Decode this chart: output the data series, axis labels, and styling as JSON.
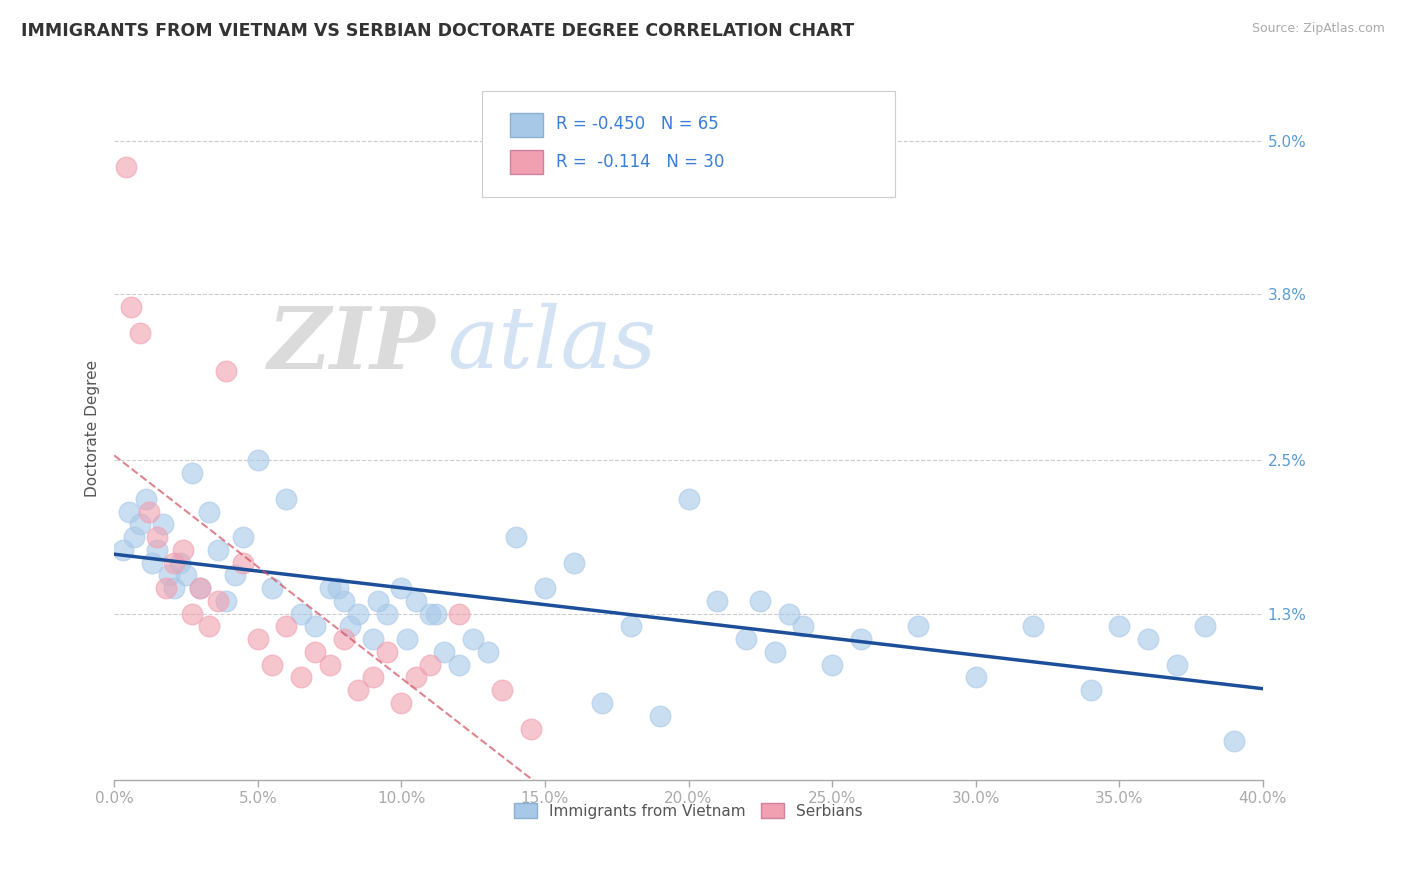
{
  "title": "IMMIGRANTS FROM VIETNAM VS SERBIAN DOCTORATE DEGREE CORRELATION CHART",
  "source": "Source: ZipAtlas.com",
  "ylabel": "Doctorate Degree",
  "xlim": [
    0.0,
    40.0
  ],
  "ylim": [
    0.0,
    5.5
  ],
  "ytick_vals": [
    1.3,
    2.5,
    3.8,
    5.0
  ],
  "ytick_labels": [
    "1.3%",
    "2.5%",
    "3.8%",
    "5.0%"
  ],
  "xtick_vals": [
    0,
    5,
    10,
    15,
    20,
    25,
    30,
    35,
    40
  ],
  "xtick_labels": [
    "0.0%",
    "5.0%",
    "10.0%",
    "15.0%",
    "20.0%",
    "25.0%",
    "30.0%",
    "35.0%",
    "40.0%"
  ],
  "legend1_label": "Immigrants from Vietnam",
  "legend2_label": "Serbians",
  "r1": "-0.450",
  "n1": "65",
  "r2": "-0.114",
  "n2": "30",
  "blue_color": "#A8C8E8",
  "pink_color": "#F0A0B0",
  "blue_line_color": "#1C4E9A",
  "pink_line_color": "#D05060",
  "background_color": "#FFFFFF",
  "grid_color": "#CCCCCC",
  "title_color": "#333333",
  "axis_label_color": "#5B9BD5",
  "watermark_zip": "ZIP",
  "watermark_atlas": "atlas",
  "vietnam_x": [
    0.3,
    0.5,
    0.7,
    0.9,
    1.1,
    1.3,
    1.5,
    1.7,
    1.9,
    2.1,
    2.3,
    2.5,
    2.7,
    3.0,
    3.3,
    3.6,
    3.9,
    4.2,
    4.5,
    5.0,
    5.5,
    6.0,
    6.5,
    7.0,
    7.5,
    8.0,
    8.5,
    9.0,
    9.5,
    10.0,
    10.5,
    11.0,
    11.5,
    12.0,
    12.5,
    13.0,
    14.0,
    15.0,
    16.0,
    17.0,
    18.0,
    19.0,
    20.0,
    21.0,
    22.0,
    23.0,
    24.0,
    25.0,
    26.0,
    28.0,
    30.0,
    32.0,
    34.0,
    35.0,
    36.0,
    37.0,
    38.0,
    39.0,
    22.5,
    23.5,
    7.8,
    8.2,
    9.2,
    10.2,
    11.2
  ],
  "vietnam_y": [
    1.8,
    2.1,
    1.9,
    2.0,
    2.2,
    1.7,
    1.8,
    2.0,
    1.6,
    1.5,
    1.7,
    1.6,
    2.4,
    1.5,
    2.1,
    1.8,
    1.4,
    1.6,
    1.9,
    2.5,
    1.5,
    2.2,
    1.3,
    1.2,
    1.5,
    1.4,
    1.3,
    1.1,
    1.3,
    1.5,
    1.4,
    1.3,
    1.0,
    0.9,
    1.1,
    1.0,
    1.9,
    1.5,
    1.7,
    0.6,
    1.2,
    0.5,
    2.2,
    1.4,
    1.1,
    1.0,
    1.2,
    0.9,
    1.1,
    1.2,
    0.8,
    1.2,
    0.7,
    1.2,
    1.1,
    0.9,
    1.2,
    0.3,
    1.4,
    1.3,
    1.5,
    1.2,
    1.4,
    1.1,
    1.3
  ],
  "serbian_x": [
    0.4,
    0.6,
    0.9,
    1.2,
    1.5,
    1.8,
    2.1,
    2.4,
    2.7,
    3.0,
    3.3,
    3.6,
    3.9,
    4.5,
    5.0,
    5.5,
    6.0,
    6.5,
    7.0,
    7.5,
    8.0,
    8.5,
    9.0,
    9.5,
    10.0,
    10.5,
    11.0,
    12.0,
    13.5,
    14.5
  ],
  "serbian_y": [
    4.8,
    3.7,
    3.5,
    2.1,
    1.9,
    1.5,
    1.7,
    1.8,
    1.3,
    1.5,
    1.2,
    1.4,
    3.2,
    1.7,
    1.1,
    0.9,
    1.2,
    0.8,
    1.0,
    0.9,
    1.1,
    0.7,
    0.8,
    1.0,
    0.6,
    0.8,
    0.9,
    1.3,
    0.7,
    0.4
  ]
}
